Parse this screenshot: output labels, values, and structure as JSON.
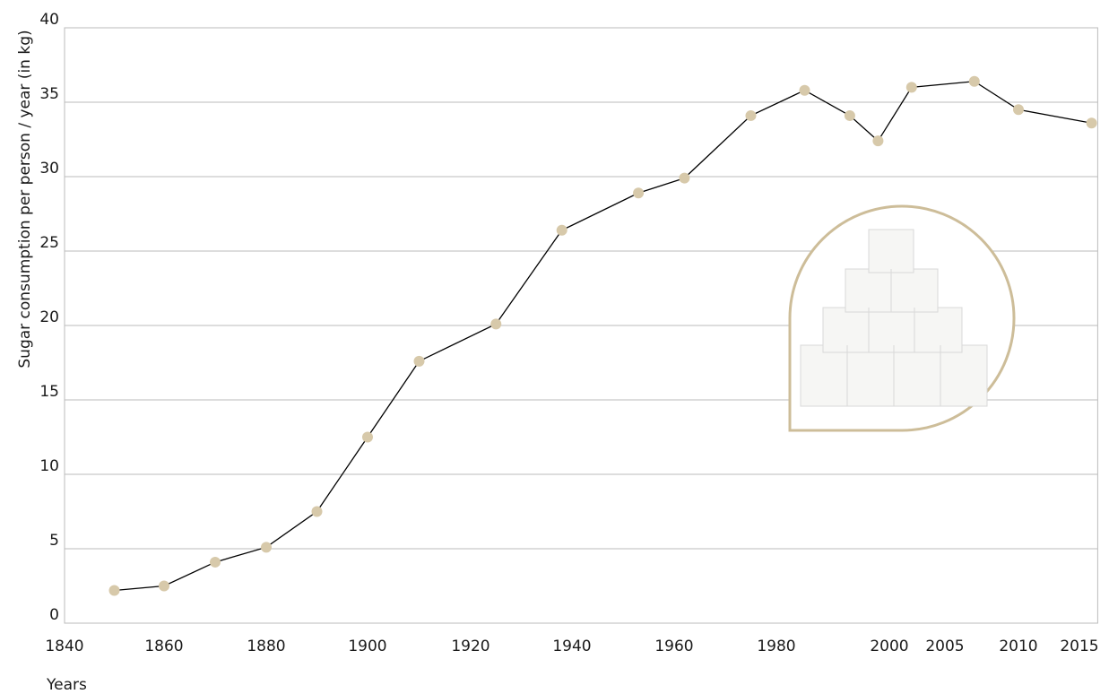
{
  "chart_data": {
    "type": "line",
    "y_label": "Sugar consumption per person / year (in kg)",
    "x_label": "Years",
    "x": [
      1850,
      1860,
      1870,
      1880,
      1890,
      1900,
      1910,
      1925,
      1938,
      1953,
      1962,
      1975,
      1985,
      1993,
      1998,
      2002,
      2007,
      2010,
      2016
    ],
    "series": [
      {
        "color": "#000000",
        "marker_color": "#d7c9aa",
        "values": [
          2.2,
          2.5,
          4.1,
          5.1,
          7.5,
          12.5,
          17.6,
          20.1,
          26.4,
          28.9,
          29.9,
          34.1,
          35.8,
          34.1,
          32.4,
          36.0,
          36.4,
          34.5,
          33.6
        ]
      }
    ],
    "xlim": [
      1840,
      2016.5
    ],
    "xticks": [
      1840,
      1860,
      1880,
      1900,
      1920,
      1940,
      1960,
      1980,
      2000,
      2005,
      2010,
      2015
    ],
    "ylim": [
      0,
      40
    ],
    "yticks": [
      0,
      5,
      10,
      15,
      20,
      25,
      30,
      35,
      40
    ],
    "grid": true
  }
}
